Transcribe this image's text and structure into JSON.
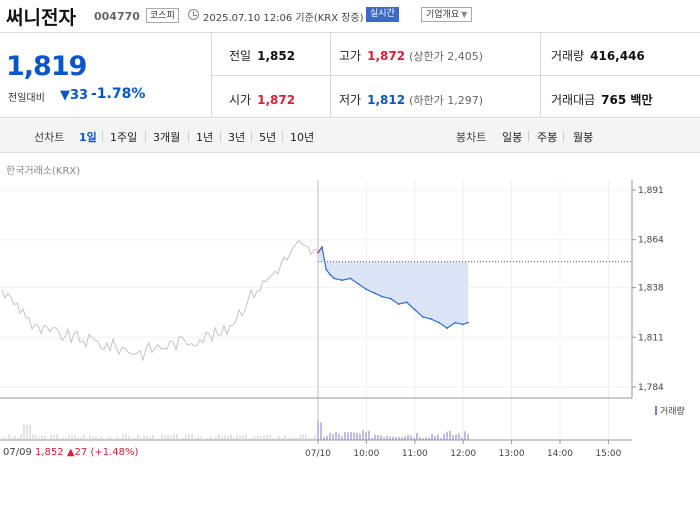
{
  "header": {
    "stock_name": "써니전자",
    "stock_code": "004770",
    "market": "코스피",
    "datetime": "2025.07.10 12:06 기준(KRX 장중)",
    "realtime": "실시간",
    "company_info": "기업개요"
  },
  "price": {
    "current": "1,819",
    "prev_label": "전일대비",
    "change": "33",
    "change_pct": "-1.78%"
  },
  "stats": {
    "prev_close_label": "전일",
    "prev_close": "1,852",
    "high_label": "고가",
    "high": "1,872",
    "upper_limit": "(상한가 2,405)",
    "volume_label": "거래량",
    "volume": "416,446",
    "open_label": "시가",
    "open": "1,872",
    "low_label": "저가",
    "low": "1,812",
    "lower_limit": "(하한가 1,297)",
    "amount_label": "거래대금",
    "amount": "765 백만"
  },
  "toolbar": {
    "line_label": "선차트",
    "periods": [
      "1일",
      "1주일",
      "3개월",
      "1년",
      "3년",
      "5년",
      "10년"
    ],
    "active_period": "1일",
    "candle_label": "봉차트",
    "candles": [
      "일봉",
      "주봉",
      "월봉"
    ]
  },
  "chart": {
    "source": "한국거래소(KRX)",
    "volume_label": "거래량",
    "prev_day_label": "07/09",
    "prev_day_close": "1,852",
    "prev_day_change": "▲27 (+1.48%)"
  },
  "colors": {
    "up": "#d9223a",
    "down": "#0a55c9",
    "prev_day_line": "#c4c4c4",
    "volume": "#8877c8"
  },
  "chart_data": {
    "type": "line",
    "ylim": [
      1784,
      1891
    ],
    "yticks": [
      1891,
      1864,
      1838,
      1811,
      1784
    ],
    "ytick_labels": [
      "1,891",
      "1,864",
      "1,838",
      "1,811",
      "1,784"
    ],
    "xtick_labels": [
      "07/10",
      "10:00",
      "11:00",
      "12:00",
      "13:00",
      "14:00",
      "15:00"
    ],
    "xtick_times": [
      "09:00",
      "10:00",
      "11:00",
      "12:00",
      "13:00",
      "14:00",
      "15:00"
    ],
    "reference_price": 1852,
    "series": [
      {
        "x": [
          "09:00",
          "09:05",
          "09:10",
          "09:15",
          "09:20",
          "09:30",
          "09:40",
          "09:50",
          "10:00",
          "10:10",
          "10:20",
          "10:30",
          "10:40",
          "10:50",
          "11:00",
          "11:10",
          "11:20",
          "11:30",
          "11:40",
          "11:50",
          "12:00",
          "12:06"
        ],
        "values": [
          1857,
          1860,
          1848,
          1845,
          1843,
          1842,
          1843,
          1840,
          1837,
          1835,
          1833,
          1832,
          1829,
          1830,
          1826,
          1822,
          1821,
          1819,
          1816,
          1819,
          1818,
          1819
        ]
      }
    ]
  }
}
